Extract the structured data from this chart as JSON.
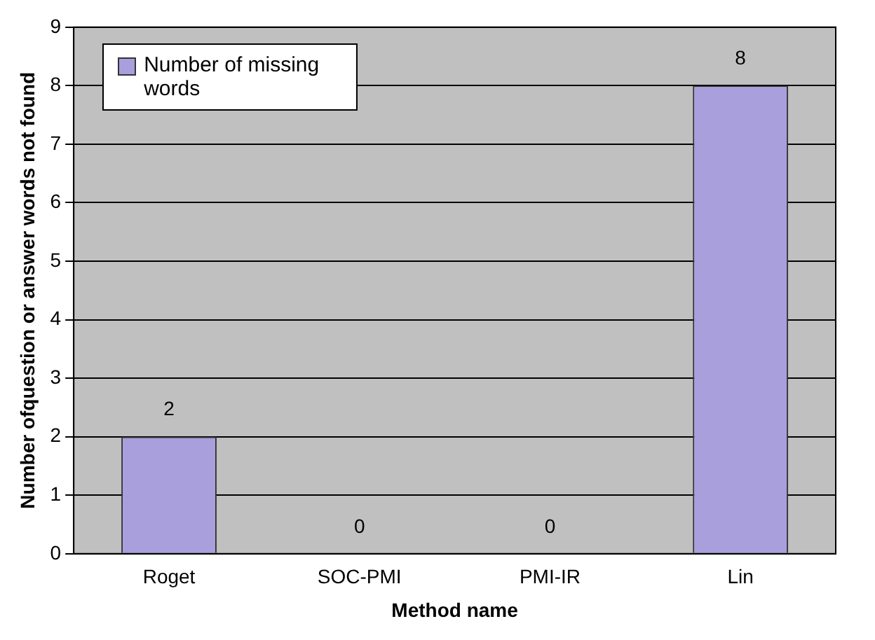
{
  "chart_data": {
    "type": "bar",
    "xlabel": "Method name",
    "ylabel": "Number ofquestion or answer words not found",
    "categories": [
      "Roget",
      "SOC-PMI",
      "PMI-IR",
      "Lin"
    ],
    "series": [
      {
        "name": "Number of missing words",
        "color": "#a99fdc",
        "values": [
          2,
          0,
          0,
          8
        ]
      }
    ],
    "ylim": [
      0,
      9
    ],
    "yticks": [
      0,
      1,
      2,
      3,
      4,
      5,
      6,
      7,
      8,
      9
    ],
    "grid": "y",
    "legend": "top left",
    "data_labels": true
  }
}
